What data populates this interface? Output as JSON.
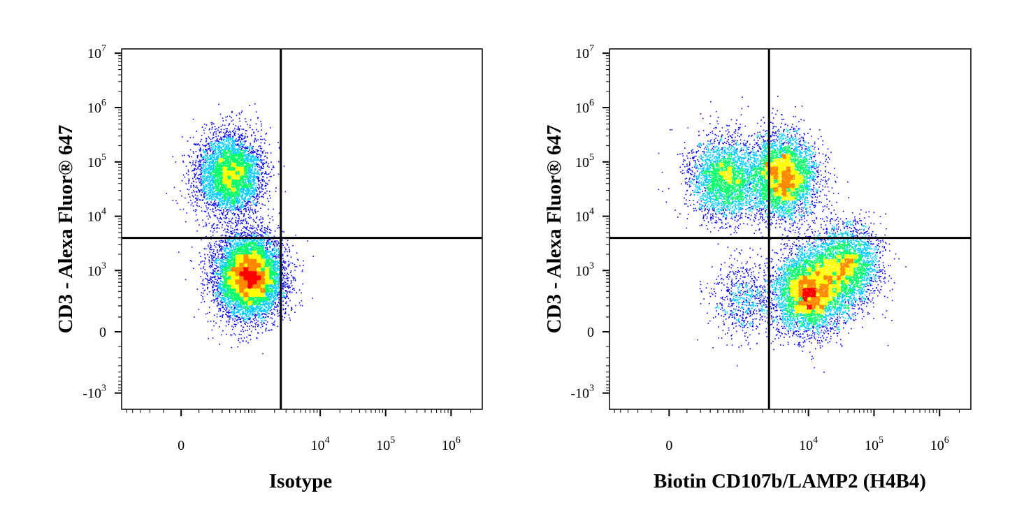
{
  "chart_data": [
    {
      "type": "scatter",
      "title": "",
      "xlabel": "Isotype",
      "ylabel": "CD3 - Alexa Fluor® 647",
      "x_scale": "biexponential",
      "y_scale": "biexponential",
      "x_tick_labels": [
        {
          "value": 0,
          "base": "0",
          "exp": ""
        },
        {
          "value": 10000,
          "base": "10",
          "exp": "4"
        },
        {
          "value": 100000,
          "base": "10",
          "exp": "5"
        },
        {
          "value": 1000000,
          "base": "10",
          "exp": "6"
        }
      ],
      "y_tick_labels": [
        {
          "value": -1000,
          "base": "-10",
          "exp": "3"
        },
        {
          "value": 0,
          "base": "0",
          "exp": ""
        },
        {
          "value": 1000,
          "base": "10",
          "exp": "3"
        },
        {
          "value": 10000,
          "base": "10",
          "exp": "4"
        },
        {
          "value": 100000,
          "base": "10",
          "exp": "5"
        },
        {
          "value": 1000000,
          "base": "10",
          "exp": "6"
        },
        {
          "value": 10000000,
          "base": "10",
          "exp": "7"
        }
      ],
      "quadrant_gate": {
        "x": 2500,
        "y": 4000
      },
      "populations": [
        {
          "cx": 400,
          "cy": 60000,
          "count": 5000
        },
        {
          "cx": 800,
          "cy": 800,
          "count": 9000
        }
      ],
      "density_colors": [
        "#0000ff",
        "#00ccff",
        "#00ff66",
        "#ffff00",
        "#ff8800",
        "#ff0000"
      ]
    },
    {
      "type": "scatter",
      "title": "",
      "xlabel": "Biotin CD107b/LAMP2 (H4B4)",
      "ylabel": "CD3 - Alexa Fluor® 647",
      "x_scale": "biexponential",
      "y_scale": "biexponential",
      "x_tick_labels": [
        {
          "value": 0,
          "base": "0",
          "exp": ""
        },
        {
          "value": 10000,
          "base": "10",
          "exp": "4"
        },
        {
          "value": 100000,
          "base": "10",
          "exp": "5"
        },
        {
          "value": 1000000,
          "base": "10",
          "exp": "6"
        }
      ],
      "y_tick_labels": [
        {
          "value": -1000,
          "base": "-10",
          "exp": "3"
        },
        {
          "value": 0,
          "base": "0",
          "exp": ""
        },
        {
          "value": 1000,
          "base": "10",
          "exp": "3"
        },
        {
          "value": 10000,
          "base": "10",
          "exp": "4"
        },
        {
          "value": 100000,
          "base": "10",
          "exp": "5"
        },
        {
          "value": 1000000,
          "base": "10",
          "exp": "6"
        },
        {
          "value": 10000000,
          "base": "10",
          "exp": "7"
        }
      ],
      "quadrant_gate": {
        "x": 2500,
        "y": 4000
      },
      "populations": [
        {
          "cx": 500,
          "cy": 50000,
          "count": 3000
        },
        {
          "cx": 4000,
          "cy": 55000,
          "count": 5000
        },
        {
          "cx": 35000,
          "cy": 1200,
          "count": 3500
        },
        {
          "cx": 10000,
          "cy": 400,
          "count": 5500
        },
        {
          "cx": 1000,
          "cy": 300,
          "count": 700
        }
      ],
      "density_colors": [
        "#0000ff",
        "#00ccff",
        "#00ff66",
        "#ffff00",
        "#ff8800",
        "#ff0000"
      ]
    }
  ]
}
